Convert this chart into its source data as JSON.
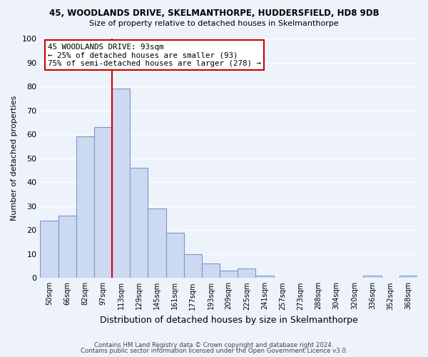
{
  "title": "45, WOODLANDS DRIVE, SKELMANTHORPE, HUDDERSFIELD, HD8 9DB",
  "subtitle": "Size of property relative to detached houses in Skelmanthorpe",
  "xlabel": "Distribution of detached houses by size in Skelmanthorpe",
  "ylabel": "Number of detached properties",
  "bar_color": "#ccd9f0",
  "bar_edge_color": "#7799cc",
  "bg_color": "#eef2fb",
  "grid_color": "#ffffff",
  "categories": [
    "50sqm",
    "66sqm",
    "82sqm",
    "97sqm",
    "113sqm",
    "129sqm",
    "145sqm",
    "161sqm",
    "177sqm",
    "193sqm",
    "209sqm",
    "225sqm",
    "241sqm",
    "257sqm",
    "273sqm",
    "288sqm",
    "304sqm",
    "320sqm",
    "336sqm",
    "352sqm",
    "368sqm"
  ],
  "values": [
    24,
    26,
    59,
    63,
    79,
    46,
    29,
    19,
    10,
    6,
    3,
    4,
    1,
    0,
    0,
    0,
    0,
    0,
    1,
    0,
    1
  ],
  "vline_x_idx": 3,
  "vline_color": "#cc0000",
  "annotation_text": "45 WOODLANDS DRIVE: 93sqm\n← 25% of detached houses are smaller (93)\n75% of semi-detached houses are larger (278) →",
  "annotation_box_edge": "#cc0000",
  "ylim": [
    0,
    100
  ],
  "yticks": [
    0,
    10,
    20,
    30,
    40,
    50,
    60,
    70,
    80,
    90,
    100
  ],
  "footer1": "Contains HM Land Registry data © Crown copyright and database right 2024.",
  "footer2": "Contains public sector information licensed under the Open Government Licence v3.0."
}
